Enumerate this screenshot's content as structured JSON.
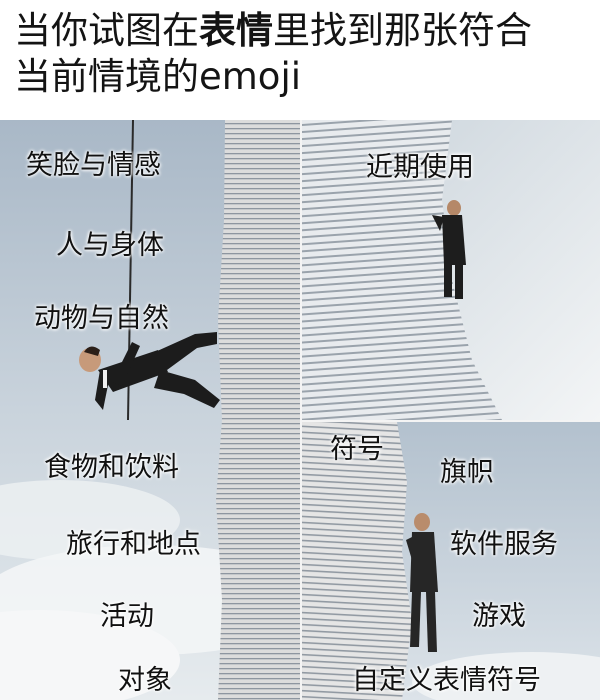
{
  "title": {
    "line1_pre": "当你试图在",
    "line1_emph": "表情",
    "line1_post": "里找到那张符合",
    "line2": "当前情境的emoji"
  },
  "left_categories": [
    "笑脸与情感",
    "人与身体",
    "动物与自然",
    "食物和饮料",
    "旅行和地点",
    "活动",
    "对象"
  ],
  "top_right_categories": [
    "近期使用"
  ],
  "bottom_right_categories": [
    "符号",
    "旗帜",
    "软件服务",
    "游戏",
    "自定义表情符号"
  ],
  "colors": {
    "sky_top": "#b9c6d2",
    "sky_bottom": "#e7ecef",
    "paper": "#e4e4e4",
    "suit": "#1c1c1c"
  }
}
